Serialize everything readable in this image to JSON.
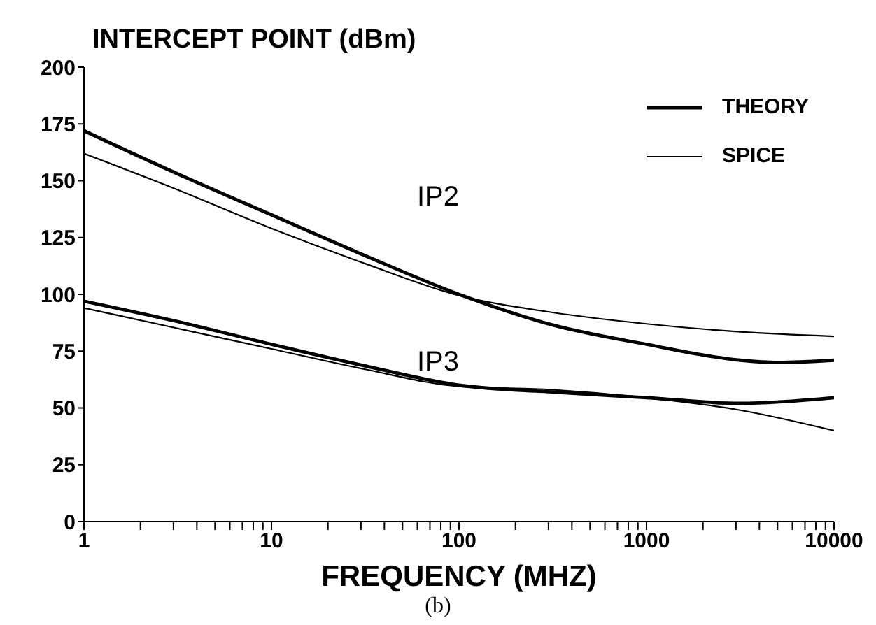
{
  "chart_data": {
    "type": "line",
    "title": "INTERCEPT POINT (dBm)",
    "xlabel": "FREQUENCY (MHZ)",
    "log": "x",
    "xlim": [
      1,
      10000
    ],
    "ylim": [
      0,
      200
    ],
    "xticks": [
      1,
      {
        "value": 2,
        "label": null
      },
      {
        "value": 3,
        "label": null
      },
      {
        "value": 4,
        "label": null
      },
      {
        "value": 5,
        "label": null
      },
      {
        "value": 6,
        "label": null
      },
      {
        "value": 7,
        "label": null
      },
      {
        "value": 8,
        "label": null
      },
      {
        "value": 9,
        "label": null
      },
      10,
      {
        "value": 20,
        "label": null
      },
      {
        "value": 30,
        "label": null
      },
      {
        "value": 40,
        "label": null
      },
      {
        "value": 50,
        "label": null
      },
      {
        "value": 60,
        "label": null
      },
      {
        "value": 70,
        "label": null
      },
      {
        "value": 80,
        "label": null
      },
      {
        "value": 90,
        "label": null
      },
      100,
      {
        "value": 200,
        "label": null
      },
      {
        "value": 300,
        "label": null
      },
      {
        "value": 400,
        "label": null
      },
      {
        "value": 500,
        "label": null
      },
      {
        "value": 600,
        "label": null
      },
      {
        "value": 700,
        "label": null
      },
      {
        "value": 800,
        "label": null
      },
      {
        "value": 900,
        "label": null
      },
      1000,
      {
        "value": 2000,
        "label": null
      },
      {
        "value": 3000,
        "label": null
      },
      {
        "value": 4000,
        "label": null
      },
      {
        "value": 5000,
        "label": null
      },
      {
        "value": 6000,
        "label": null
      },
      {
        "value": 7000,
        "label": null
      },
      {
        "value": 8000,
        "label": null
      },
      {
        "value": 9000,
        "label": null
      },
      10000
    ],
    "yticks": [
      0,
      25,
      50,
      75,
      100,
      125,
      150,
      175,
      200
    ],
    "grid": false,
    "legend": "top right",
    "marker": "none",
    "line_style": "solid",
    "series": [
      {
        "name": "THEORY",
        "color": "#000000",
        "x": [
          1,
          3.16,
          10,
          31.6,
          100,
          316,
          1000,
          3162,
          5000,
          10000
        ],
        "values": [
          172,
          153,
          135,
          117,
          100,
          86.5,
          78,
          71,
          70,
          71
        ]
      },
      {
        "name": "SPICE",
        "color": "#000000",
        "x": [
          1,
          3.16,
          10,
          31.6,
          100,
          316,
          1000,
          3162,
          10000
        ],
        "values": [
          162,
          146,
          129,
          113.5,
          99.5,
          92,
          87,
          83.5,
          81.5
        ]
      },
      {
        "color": "#000000",
        "x": [
          1,
          3.16,
          10,
          31.6,
          100,
          316,
          1000,
          3162,
          10000
        ],
        "values": [
          97,
          88,
          78,
          68.5,
          60,
          57,
          54.5,
          52,
          54.5
        ]
      },
      {
        "color": "#000000",
        "x": [
          1,
          3.16,
          10,
          31.6,
          100,
          316,
          1000,
          3162,
          10000
        ],
        "values": [
          94,
          85,
          76,
          67,
          59.5,
          58,
          54.5,
          49,
          40
        ]
      }
    ],
    "annotations": [
      "IP2",
      "IP3",
      "(b)"
    ]
  }
}
